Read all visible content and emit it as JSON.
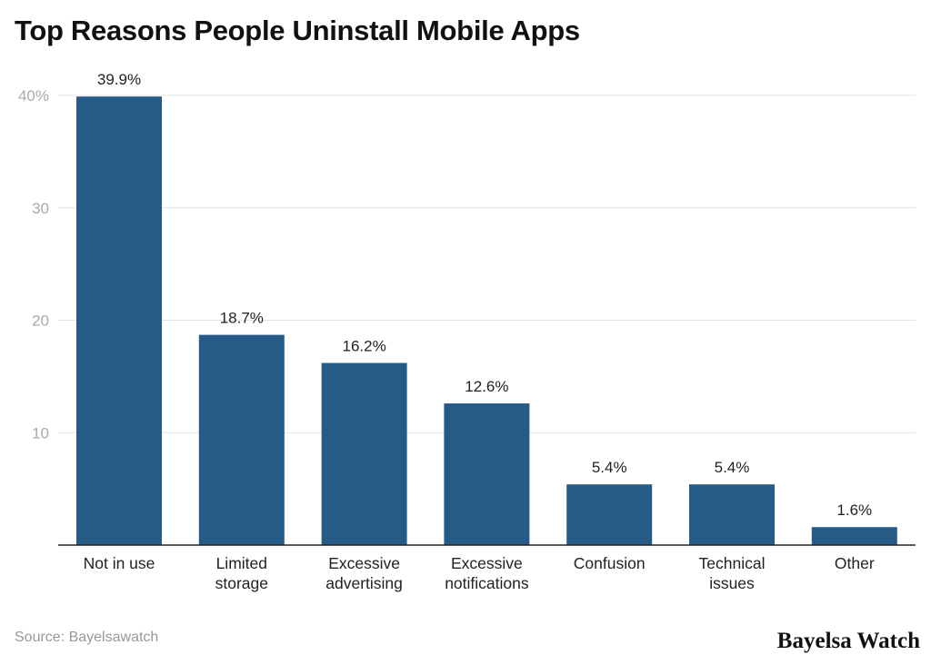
{
  "chart_data": {
    "type": "bar",
    "title": "Top Reasons People Uninstall Mobile Apps",
    "categories": [
      [
        "Not in use"
      ],
      [
        "Limited",
        "storage"
      ],
      [
        "Excessive",
        "advertising"
      ],
      [
        "Excessive",
        "notifications"
      ],
      [
        "Confusion"
      ],
      [
        "Technical",
        "issues"
      ],
      [
        "Other"
      ]
    ],
    "values": [
      39.9,
      18.7,
      16.2,
      12.6,
      5.4,
      5.4,
      1.6
    ],
    "data_labels": [
      "39.9%",
      "18.7%",
      "16.2%",
      "12.6%",
      "5.4%",
      "5.4%",
      "1.6%"
    ],
    "yticks": [
      10,
      20,
      30,
      40
    ],
    "ytick_labels": [
      "10",
      "20",
      "30",
      "40%"
    ],
    "ylim": [
      0,
      40
    ],
    "grid": true,
    "bar_color": "#265b88",
    "xlabel": "",
    "ylabel": ""
  },
  "source": "Source: Bayelsawatch",
  "logo": "Bayelsa Watch"
}
